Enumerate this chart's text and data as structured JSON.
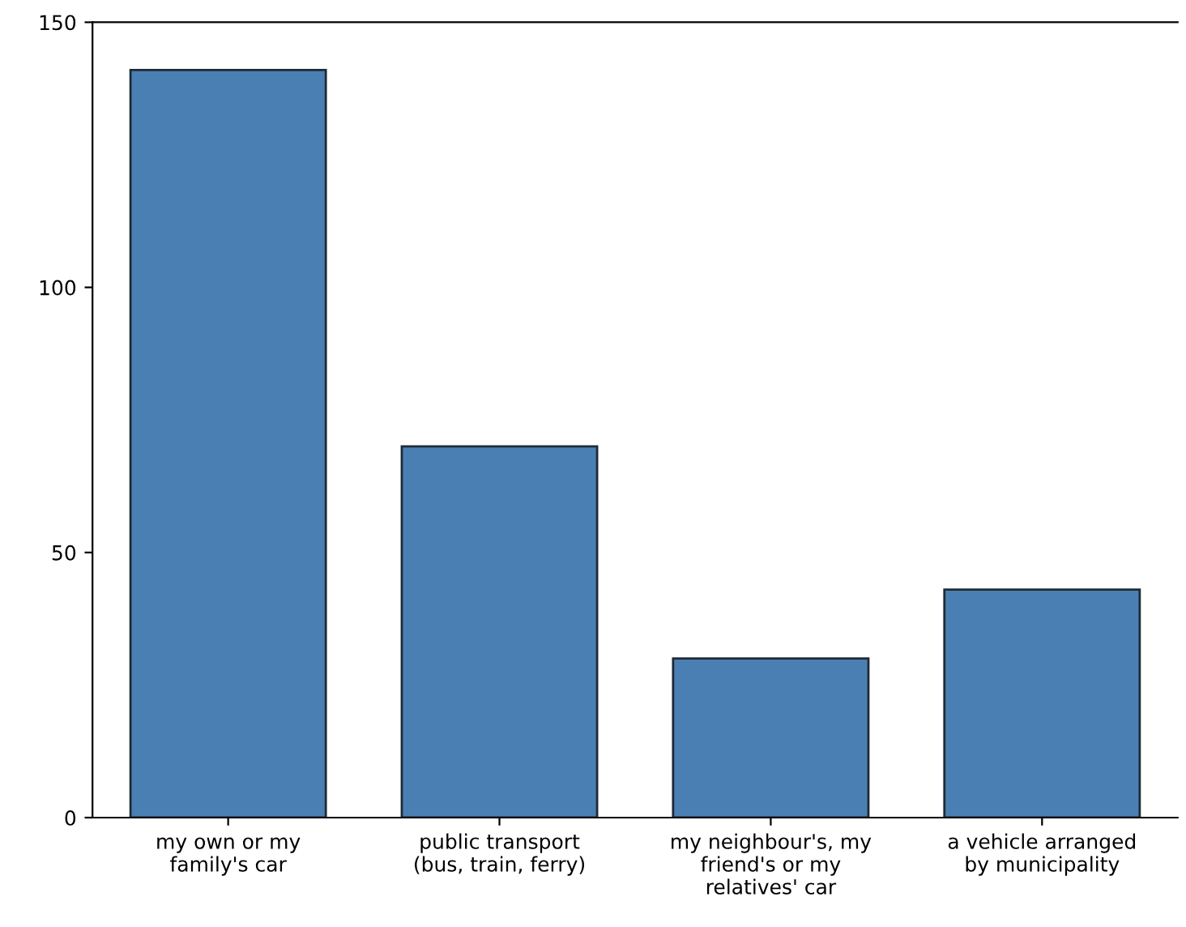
{
  "chart_data": {
    "type": "bar",
    "categories": [
      "my own or my\nfamily's car",
      "public transport\n(bus, train, ferry)",
      "my neighbour's, my\nfriend's or my\nrelatives' car",
      "a vehicle arranged\nby municipality"
    ],
    "values": [
      141,
      70,
      30,
      43
    ],
    "color": "#4a7fb3",
    "ylim": [
      0,
      150
    ],
    "yticks": [
      0,
      50,
      100,
      150
    ],
    "grid": false,
    "legend": false
  }
}
